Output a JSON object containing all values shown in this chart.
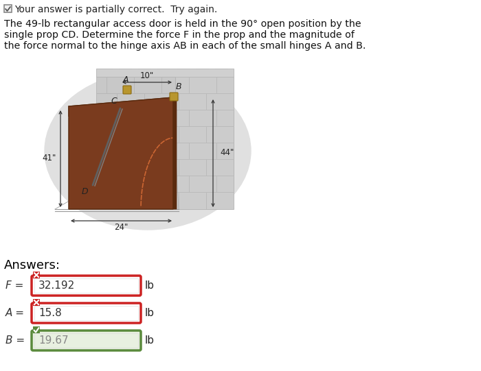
{
  "problem_text_line1": "The 49-lb rectangular access door is held in the 90° open position by the",
  "problem_text_line2": "single prop CD. Determine the force F in the prop and the magnitude of",
  "problem_text_line3": "the force normal to the hinge axis AB in each of the small hinges A and B.",
  "answers_label": "Answers:",
  "F_label": "F =",
  "F_value": "32.192",
  "F_unit": "lb",
  "F_correct": false,
  "A_label": "A =",
  "A_value": "15.8",
  "A_unit": "lb",
  "A_correct": false,
  "B_label": "B =",
  "B_value": "19.67",
  "B_unit": "lb",
  "B_correct": true,
  "dim_10": "10\"",
  "dim_41": "41\"",
  "dim_44": "44\"",
  "dim_24": "24\"",
  "bg_color": "#ffffff",
  "text_color": "#000000",
  "box_correct_color": "#5a8a3c",
  "box_correct_bg": "#e8f0e0",
  "box_incorrect_color": "#cc2222",
  "box_incorrect_bg": "#ffffff",
  "wall_brick_color": "#c8c8c8",
  "wall_brick_line": "#b0b0b0",
  "door_top_color": "#c8896a",
  "door_front_color": "#7a3b1e",
  "door_edge_color": "#5a2a0e",
  "prop_color": "#606060",
  "hinge_color": "#b8962e",
  "ellipse_bg": "#e0e0e0",
  "floor_color": "#c8c8c8",
  "arc_color": "#cc6633"
}
